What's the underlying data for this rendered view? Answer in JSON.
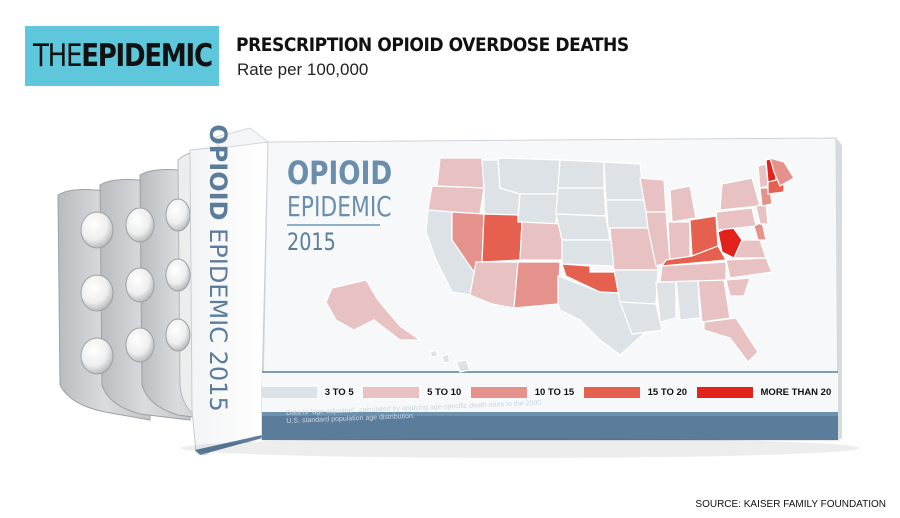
{
  "brand": {
    "the": "THE",
    "epidemic": "EPIDEMIC",
    "color": "#5ec7dc"
  },
  "headline": "PRESCRIPTION OPIOID OVERDOSE DEATHS",
  "subhead": "Rate per 100,000",
  "box": {
    "title_line1": "OPIOID",
    "title_line2": "EPIDEMIC",
    "year": "2015",
    "spine_line1": "OPIOID",
    "spine_line2": "EPIDEMIC 2015",
    "fineprint": [
      "Data is \"age-adjusted\", calculated by applying age-specific death rates to the 2000",
      "U.S. standard population age distribution."
    ]
  },
  "legend": [
    {
      "label": "3 TO 5",
      "color": "#dde2e6"
    },
    {
      "label": "5 TO 10",
      "color": "#e8c2c2"
    },
    {
      "label": "10 TO 15",
      "color": "#e5928c"
    },
    {
      "label": "15 TO 20",
      "color": "#e5604f"
    },
    {
      "label": "MORE THAN 20",
      "color": "#e3231b"
    }
  ],
  "source": "SOURCE: KAISER FAMILY FOUNDATION"
}
